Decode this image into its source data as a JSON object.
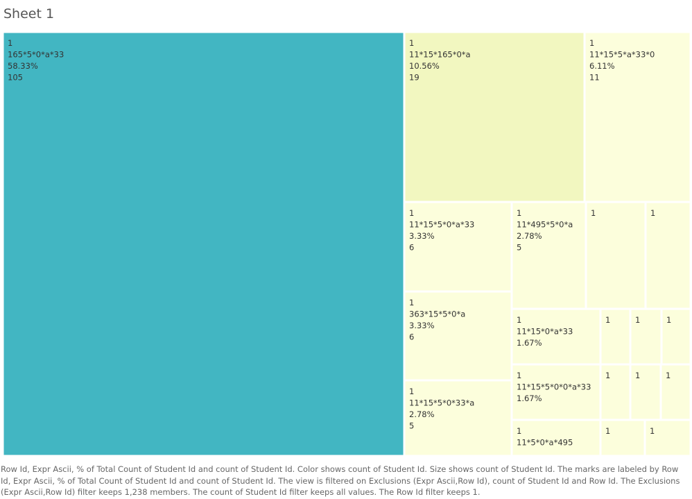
{
  "sheet": {
    "title": "Sheet 1"
  },
  "colors": {
    "large": "#42b6c2",
    "medium": "#f2f7c0",
    "small": "#fcfedc",
    "border": "#ffffff"
  },
  "caption": "Row Id, Expr Ascii, % of Total Count of Student Id and count of Student Id.  Color shows count of Student Id.  Size shows count of Student Id.  The marks are labeled by Row Id, Expr Ascii, % of Total Count of Student Id and count of Student Id. The view is filtered on Exclusions (Expr Ascii,Row Id), count of Student Id and Row Id. The Exclusions (Expr Ascii,Row Id) filter keeps 1,238 members. The count of Student Id filter keeps all values. The Row Id filter keeps 1.",
  "chart_data": {
    "type": "treemap",
    "title": "Sheet 1",
    "size_measure": "count of Student Id",
    "color_measure": "count of Student Id",
    "items": [
      {
        "row_id": "1",
        "expr": "165*5*0*a*33",
        "pct": "58.33%",
        "count": 105
      },
      {
        "row_id": "1",
        "expr": "11*15*165*0*a",
        "pct": "10.56%",
        "count": 19
      },
      {
        "row_id": "1",
        "expr": "11*15*5*a*33*0",
        "pct": "6.11%",
        "count": 11
      },
      {
        "row_id": "1",
        "expr": "11*15*5*0*a*33",
        "pct": "3.33%",
        "count": 6
      },
      {
        "row_id": "1",
        "expr": "363*15*5*0*a",
        "pct": "3.33%",
        "count": 6
      },
      {
        "row_id": "1",
        "expr": "11*15*5*0*33*a",
        "pct": "2.78%",
        "count": 5
      },
      {
        "row_id": "1",
        "expr": "11*495*5*0*a",
        "pct": "2.78%",
        "count": 5
      },
      {
        "row_id": "1",
        "expr": "11*15*0*a*33",
        "pct": "1.67%",
        "count": null
      },
      {
        "row_id": "1",
        "expr": "11*15*5*0*0*a*33",
        "pct": "1.67%",
        "count": null
      },
      {
        "row_id": "1",
        "expr": "11*5*0*a*495",
        "pct": null,
        "count": null
      },
      {
        "row_id": "1",
        "expr": null,
        "pct": null,
        "count": null
      },
      {
        "row_id": "1",
        "expr": null,
        "pct": null,
        "count": null
      },
      {
        "row_id": "1",
        "expr": null,
        "pct": null,
        "count": null
      },
      {
        "row_id": "1",
        "expr": null,
        "pct": null,
        "count": null
      },
      {
        "row_id": "1",
        "expr": null,
        "pct": null,
        "count": null
      },
      {
        "row_id": "1",
        "expr": null,
        "pct": null,
        "count": null
      },
      {
        "row_id": "1",
        "expr": null,
        "pct": null,
        "count": null
      },
      {
        "row_id": "1",
        "expr": null,
        "pct": null,
        "count": null
      },
      {
        "row_id": "1",
        "expr": null,
        "pct": null,
        "count": null
      },
      {
        "row_id": "1",
        "expr": null,
        "pct": null,
        "count": null
      }
    ]
  }
}
